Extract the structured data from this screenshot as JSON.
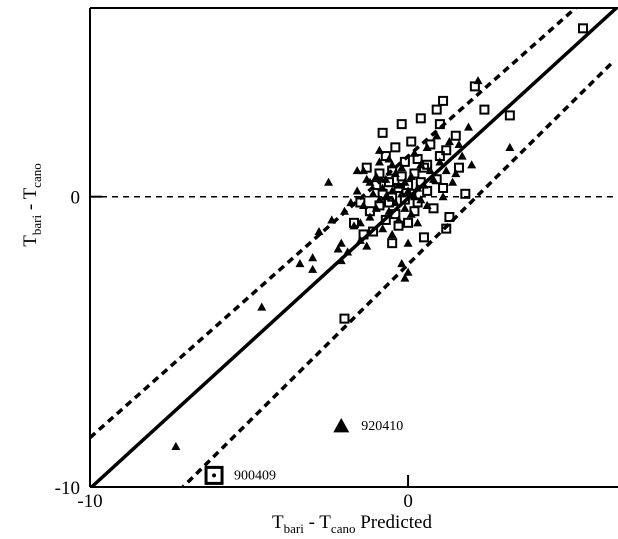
{
  "chart_data": {
    "type": "scatter",
    "title": "",
    "xlabel": {
      "main": "T",
      "sub1": "bari",
      "mid": " - T",
      "sub2": "cano",
      "tail": " Predicted"
    },
    "ylabel": {
      "main": "T",
      "sub1": "bari",
      "mid": " - T",
      "sub2": "cano"
    },
    "xlim": [
      -10,
      6.6
    ],
    "ylim": [
      -10,
      6.5
    ],
    "x_ticks": [
      {
        "value": -10,
        "label": "-10"
      },
      {
        "value": 0,
        "label": "0"
      }
    ],
    "y_ticks": [
      {
        "value": 0,
        "label": "0"
      },
      {
        "value": -10,
        "label": "-10"
      }
    ],
    "grid": false,
    "reference_lines": {
      "zero_line_y": 0,
      "fit": {
        "slope": 1.0,
        "intercept": -0.05
      },
      "confidence_upper": [
        [
          -10,
          -8.3
        ],
        [
          6.4,
          7.6
        ]
      ],
      "confidence_lower": [
        [
          -8,
          -11.0
        ],
        [
          6.4,
          4.6
        ]
      ]
    },
    "annotations": [
      {
        "text": "920410",
        "x": -2.1,
        "y": -7.9
      },
      {
        "text": "900409",
        "x": -6.1,
        "y": -9.6
      }
    ],
    "series": [
      {
        "marker": "triangle",
        "points": [
          [
            -7.3,
            -8.6
          ],
          [
            -4.6,
            -3.8
          ],
          [
            -3.4,
            -2.3
          ],
          [
            -3.0,
            -2.1
          ],
          [
            -2.5,
            0.5
          ],
          [
            -2.2,
            -1.8
          ],
          [
            -2.1,
            -2.2
          ],
          [
            -2.1,
            -1.6
          ],
          [
            -2.0,
            -0.5
          ],
          [
            -1.9,
            -1.9
          ],
          [
            -1.8,
            -0.2
          ],
          [
            -1.7,
            -1.0
          ],
          [
            -1.6,
            0.2
          ],
          [
            -1.5,
            -1.5
          ],
          [
            -1.5,
            -0.9
          ],
          [
            -1.4,
            0.9
          ],
          [
            -1.4,
            -0.3
          ],
          [
            -1.3,
            -1.7
          ],
          [
            -1.2,
            0.5
          ],
          [
            -1.2,
            -0.7
          ],
          [
            -1.1,
            0.1
          ],
          [
            -1.0,
            -0.4
          ],
          [
            -1.0,
            0.7
          ],
          [
            -0.9,
            1.2
          ],
          [
            -0.9,
            -0.1
          ],
          [
            -0.8,
            0.3
          ],
          [
            -0.8,
            -1.1
          ],
          [
            -0.7,
            0.0
          ],
          [
            -0.7,
            0.6
          ],
          [
            -0.6,
            -0.5
          ],
          [
            -0.6,
            1.3
          ],
          [
            -0.5,
            0.2
          ],
          [
            -0.5,
            -1.3
          ],
          [
            -0.4,
            0.8
          ],
          [
            -0.4,
            -0.2
          ],
          [
            -0.3,
            0.4
          ],
          [
            -0.3,
            -0.8
          ],
          [
            -0.2,
            1.0
          ],
          [
            -0.2,
            0.1
          ],
          [
            -0.1,
            -0.4
          ],
          [
            -0.1,
            0.5
          ],
          [
            0.0,
            -1.6
          ],
          [
            0.0,
            0.2
          ],
          [
            0.1,
            0.7
          ],
          [
            0.1,
            -0.6
          ],
          [
            0.2,
            1.5
          ],
          [
            0.2,
            0.0
          ],
          [
            0.3,
            0.3
          ],
          [
            0.3,
            -0.9
          ],
          [
            0.4,
            1.1
          ],
          [
            0.5,
            0.4
          ],
          [
            0.6,
            -0.3
          ],
          [
            0.6,
            1.7
          ],
          [
            0.8,
            0.6
          ],
          [
            0.9,
            2.1
          ],
          [
            1.0,
            1.2
          ],
          [
            1.1,
            0.0
          ],
          [
            1.2,
            0.9
          ],
          [
            1.3,
            1.9
          ],
          [
            1.5,
            0.8
          ],
          [
            1.7,
            1.4
          ],
          [
            1.9,
            2.4
          ],
          [
            2.0,
            1.1
          ],
          [
            2.2,
            4.0
          ],
          [
            3.2,
            1.7
          ],
          [
            -3.0,
            -2.5
          ],
          [
            -2.8,
            -1.2
          ],
          [
            -2.4,
            -0.8
          ],
          [
            -1.6,
            0.9
          ],
          [
            0.0,
            -2.6
          ],
          [
            -0.2,
            -2.3
          ],
          [
            0.7,
            0.9
          ],
          [
            1.4,
            0.5
          ],
          [
            -0.9,
            1.6
          ],
          [
            -2.1,
            -7.9
          ],
          [
            -0.1,
            -2.8
          ],
          [
            0.4,
            -0.1
          ],
          [
            1.6,
            1.8
          ],
          [
            -1.3,
            0.6
          ],
          [
            -0.5,
            1.1
          ]
        ]
      },
      {
        "marker": "square",
        "points": [
          [
            -6.1,
            -9.6
          ],
          [
            -2.0,
            -4.2
          ],
          [
            -1.7,
            -0.9
          ],
          [
            -1.5,
            -0.2
          ],
          [
            -1.3,
            1.0
          ],
          [
            -1.2,
            -0.5
          ],
          [
            -1.1,
            -1.2
          ],
          [
            -1.0,
            0.4
          ],
          [
            -0.9,
            0.8
          ],
          [
            -0.9,
            -0.3
          ],
          [
            -0.8,
            0.1
          ],
          [
            -0.7,
            1.4
          ],
          [
            -0.7,
            -0.8
          ],
          [
            -0.6,
            0.5
          ],
          [
            -0.6,
            -0.2
          ],
          [
            -0.5,
            0.9
          ],
          [
            -0.5,
            0.0
          ],
          [
            -0.4,
            -0.6
          ],
          [
            -0.4,
            1.7
          ],
          [
            -0.3,
            0.3
          ],
          [
            -0.3,
            -1.0
          ],
          [
            -0.2,
            0.7
          ],
          [
            -0.1,
            -0.1
          ],
          [
            -0.1,
            1.2
          ],
          [
            0.0,
            0.4
          ],
          [
            0.0,
            -0.9
          ],
          [
            0.1,
            1.9
          ],
          [
            0.1,
            0.1
          ],
          [
            0.2,
            -0.5
          ],
          [
            0.2,
            0.8
          ],
          [
            0.3,
            1.3
          ],
          [
            0.3,
            -0.2
          ],
          [
            0.4,
            0.5
          ],
          [
            0.5,
            -1.4
          ],
          [
            0.5,
            1.0
          ],
          [
            0.6,
            0.2
          ],
          [
            0.7,
            1.8
          ],
          [
            0.8,
            -0.4
          ],
          [
            0.9,
            0.6
          ],
          [
            1.0,
            1.4
          ],
          [
            1.0,
            2.5
          ],
          [
            1.1,
            0.3
          ],
          [
            1.2,
            1.6
          ],
          [
            1.3,
            -0.7
          ],
          [
            1.5,
            2.1
          ],
          [
            1.8,
            0.1
          ],
          [
            2.1,
            3.8
          ],
          [
            2.4,
            3.0
          ],
          [
            3.2,
            2.8
          ],
          [
            5.5,
            5.8
          ],
          [
            1.1,
            3.3
          ],
          [
            -0.2,
            2.5
          ],
          [
            0.4,
            2.7
          ],
          [
            1.2,
            -1.1
          ],
          [
            -0.8,
            2.2
          ],
          [
            -1.4,
            -1.3
          ],
          [
            0.9,
            3.0
          ],
          [
            1.6,
            1.0
          ],
          [
            -0.5,
            -1.6
          ],
          [
            0.6,
            1.1
          ]
        ]
      }
    ]
  }
}
